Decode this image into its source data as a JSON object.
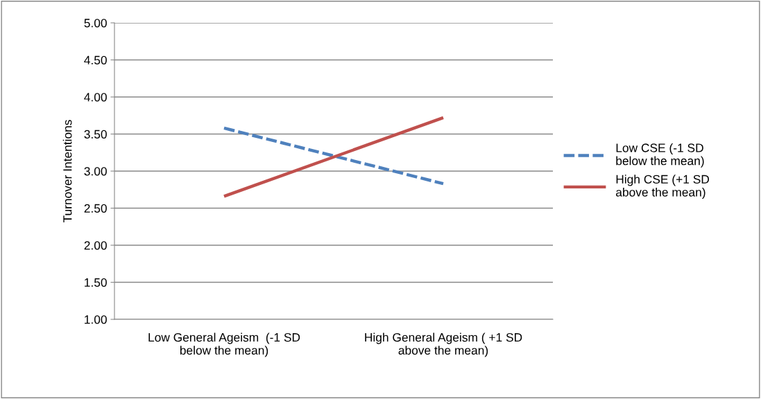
{
  "chart_data": {
    "type": "line",
    "ylabel": "Turnover Intentions",
    "categories": [
      "Low General Ageism  (-1 SD\nbelow the mean)",
      "High General Ageism ( +1 SD\nabove the mean)"
    ],
    "series": [
      {
        "name": "Low CSE (-1 SD\nbelow the mean)",
        "color": "#4f81bd",
        "values": [
          3.58,
          2.83
        ],
        "line_style": "dashed"
      },
      {
        "name": "High CSE (+1 SD\nabove the mean)",
        "color": "#c0504d",
        "values": [
          2.66,
          3.72
        ],
        "line_style": "solid"
      }
    ],
    "ylim": [
      1,
      5
    ],
    "yticks": [
      {
        "value": 1,
        "label": "1.00"
      },
      {
        "value": 1.5,
        "label": "1.50"
      },
      {
        "value": 2,
        "label": "2.00"
      },
      {
        "value": 2.5,
        "label": "2.50"
      },
      {
        "value": 3,
        "label": "3.00"
      },
      {
        "value": 3.5,
        "label": "3.50"
      },
      {
        "value": 4,
        "label": "4.00"
      },
      {
        "value": 4.5,
        "label": "4.50"
      },
      {
        "value": 5,
        "label": "5.00"
      }
    ],
    "grid": "y",
    "legend": "right",
    "marker": "none"
  }
}
